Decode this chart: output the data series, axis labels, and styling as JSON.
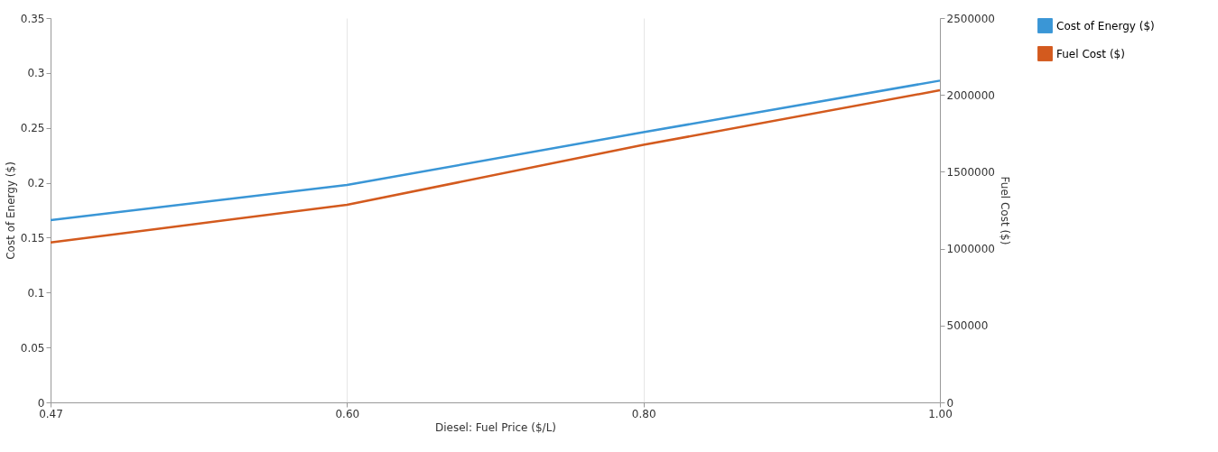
{
  "chart_data": {
    "type": "line",
    "xlabel": "Diesel: Fuel Price ($/L)",
    "ylabel": "Cost of Energy ($)",
    "y2label": "Fuel Cost ($)",
    "categories": [
      "0.47",
      "0.60",
      "0.80",
      "1.00"
    ],
    "series": [
      {
        "name": "Cost of Energy ($)",
        "color": "#3a96d6",
        "values": [
          0.166,
          0.198,
          0.246,
          0.293
        ]
      },
      {
        "name": "Fuel Cost ($)",
        "color": "#d35a1e",
        "values": [
          1040000,
          1285000,
          1675000,
          2030000
        ],
        "axis": "y2"
      }
    ],
    "ylim": [
      0,
      0.35
    ],
    "yticks": [
      0,
      0.05,
      0.1,
      0.15,
      0.2,
      0.25,
      0.3,
      0.35
    ],
    "y2lim": [
      0,
      2500000
    ],
    "y2ticks": [
      0,
      500000,
      1000000,
      1500000,
      2000000,
      2500000
    ],
    "grid": "x",
    "legend": "top right",
    "marker": "none",
    "line_style": "solid"
  }
}
